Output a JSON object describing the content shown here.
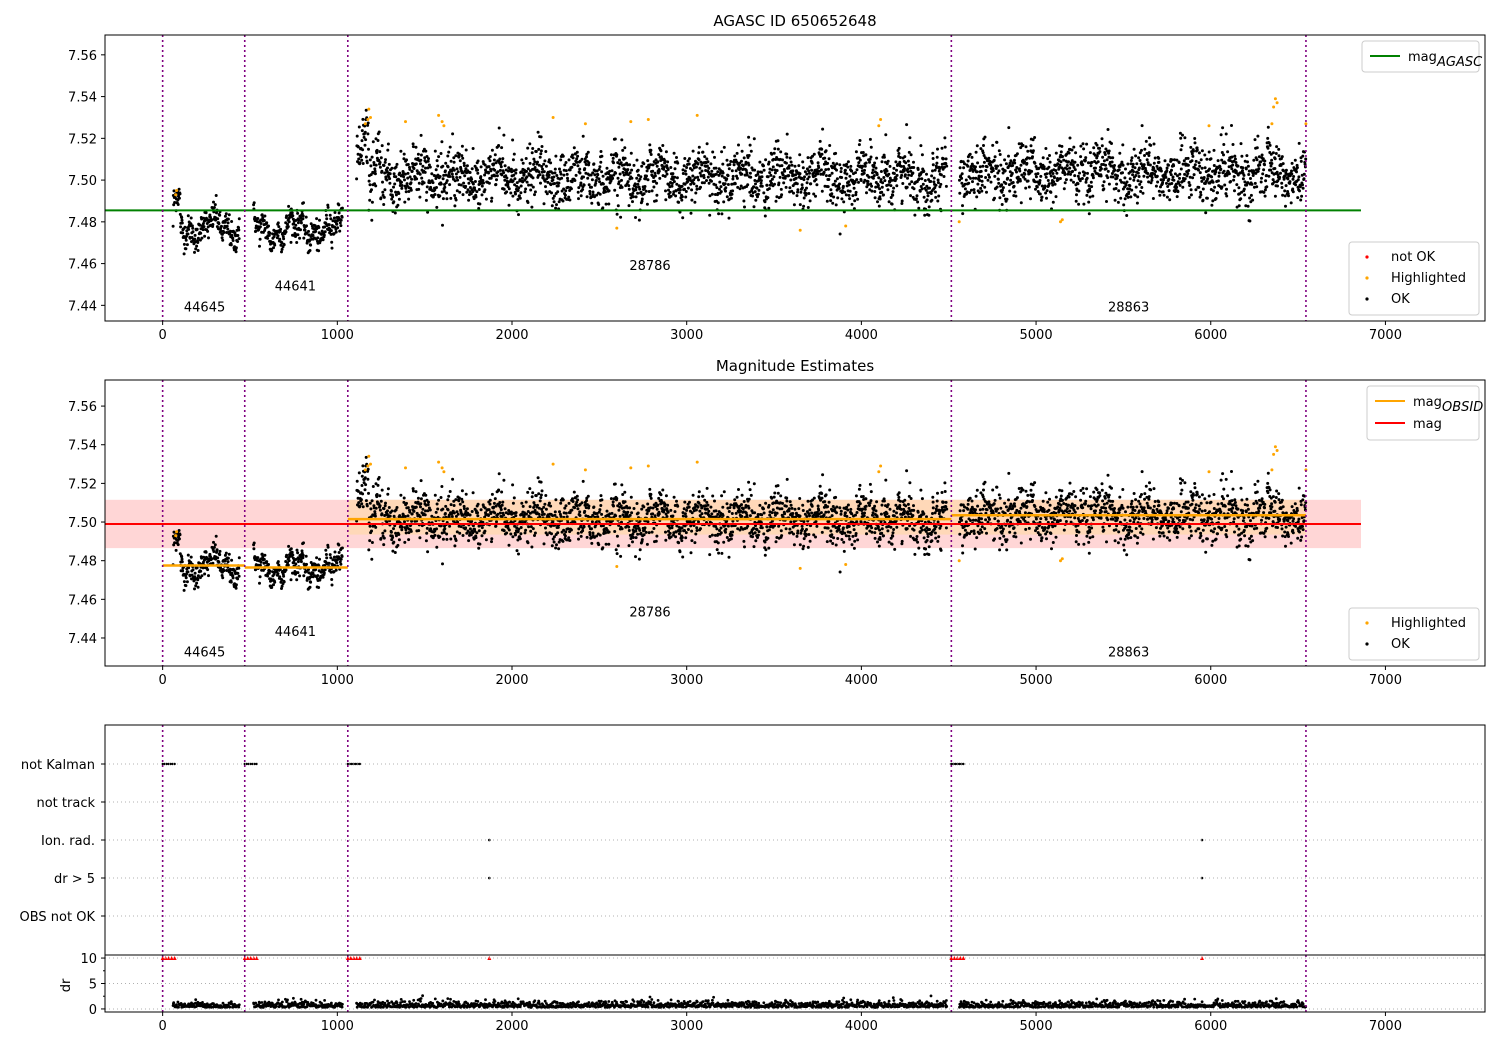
{
  "colors": {
    "agasc_line": "#008000",
    "obsid_line": "#ffa500",
    "mag_line": "#ff0000",
    "mag_band": "#ffd6d6",
    "obsid_band": "#ffd8b0",
    "divider": "#800080",
    "ok": "#000000",
    "highlighted": "#ffa500",
    "not_ok": "#ff0000"
  },
  "chart_data": [
    {
      "id": "agasc",
      "type": "scatter",
      "title": "AGASC ID 650652648",
      "xlabel": "",
      "ylabel": "",
      "xlim": [
        -330,
        7570
      ],
      "ylim": [
        7.4325,
        7.5695
      ],
      "xticks": [
        0,
        1000,
        2000,
        3000,
        4000,
        5000,
        6000,
        7000
      ],
      "yticks": [
        7.44,
        7.46,
        7.48,
        7.5,
        7.52,
        7.54,
        7.56
      ],
      "ytick_labels": [
        "7.44",
        "7.46",
        "7.48",
        "7.50",
        "7.52",
        "7.54",
        "7.56"
      ],
      "grid": false,
      "mag_agasc": 7.4855,
      "mag_agasc_x": [
        -330,
        6860
      ],
      "obsid_boundaries": [
        0,
        470,
        1060,
        4515,
        6545
      ],
      "obsid_labels": [
        {
          "text": "44645",
          "x": 240,
          "y": 7.437
        },
        {
          "text": "44641",
          "x": 760,
          "y": 7.447
        },
        {
          "text": "28786",
          "x": 2790,
          "y": 7.457
        },
        {
          "text": "28863",
          "x": 5530,
          "y": 7.437
        }
      ],
      "legend_lines": [
        {
          "label_main": "mag",
          "label_sub": "AGASC",
          "color": "#008000"
        }
      ],
      "legend_line_position": "upper right",
      "legend_points": [
        {
          "label": "not OK",
          "color": "#ff0000"
        },
        {
          "label": "Highlighted",
          "color": "#ffa500"
        },
        {
          "label": "OK",
          "color": "#000000"
        }
      ],
      "legend_points_position": "lower right"
    },
    {
      "id": "estimates",
      "type": "scatter",
      "title": "Magnitude Estimates",
      "xlabel": "",
      "ylabel": "",
      "xlim": [
        -330,
        7570
      ],
      "ylim": [
        7.4255,
        7.5735
      ],
      "xticks": [
        0,
        1000,
        2000,
        3000,
        4000,
        5000,
        6000,
        7000
      ],
      "yticks": [
        7.44,
        7.46,
        7.48,
        7.5,
        7.52,
        7.54,
        7.56
      ],
      "ytick_labels": [
        "7.44",
        "7.46",
        "7.48",
        "7.50",
        "7.52",
        "7.54",
        "7.56"
      ],
      "grid": false,
      "mag": 7.499,
      "mag_band": [
        7.4865,
        7.5115
      ],
      "mag_x": [
        -330,
        6860
      ],
      "obsid_mags": [
        {
          "x": [
            0,
            470
          ],
          "mag": 7.4775
        },
        {
          "x": [
            470,
            1060
          ],
          "mag": 7.4765
        },
        {
          "x": [
            1060,
            4515
          ],
          "mag": 7.5015
        },
        {
          "x": [
            4515,
            6545
          ],
          "mag": 7.5035
        }
      ],
      "obsid_band": [
        7.4935,
        7.5115
      ],
      "obsid_band_x": [
        1060,
        6545
      ],
      "obsid_boundaries": [
        0,
        470,
        1060,
        4515,
        6545
      ],
      "obsid_labels": [
        {
          "text": "44645",
          "x": 240,
          "y": 7.4305
        },
        {
          "text": "44641",
          "x": 760,
          "y": 7.441
        },
        {
          "text": "28786",
          "x": 2790,
          "y": 7.451
        },
        {
          "text": "28863",
          "x": 5530,
          "y": 7.4305
        }
      ],
      "legend_lines": [
        {
          "label_main": "mag",
          "label_sub": "OBSID",
          "color": "#ffa500"
        },
        {
          "label_main": "mag",
          "label_sub": "",
          "color": "#ff0000"
        }
      ],
      "legend_line_position": "upper right",
      "legend_points": [
        {
          "label": "Highlighted",
          "color": "#ffa500"
        },
        {
          "label": "OK",
          "color": "#000000"
        }
      ],
      "legend_points_position": "lower right"
    },
    {
      "id": "flags",
      "type": "scatter",
      "title": "",
      "xlabel": "",
      "ylabel": "",
      "xlim": [
        -330,
        7570
      ],
      "categories": [
        "not Kalman",
        "not track",
        "Ion. rad.",
        "dr > 5",
        "OBS not OK"
      ],
      "obsid_boundaries": [
        0,
        470,
        1060,
        4515,
        6545
      ],
      "flag_spans": {
        "not Kalman": [
          [
            0,
            70
          ],
          [
            470,
            540
          ],
          [
            1060,
            1130
          ],
          [
            4515,
            4585
          ]
        ],
        "not track": [],
        "Ion. rad.": [
          [
            1870,
            1870
          ],
          [
            5950,
            5950
          ]
        ],
        "dr > 5": [
          [
            1870,
            1870
          ],
          [
            5950,
            5950
          ]
        ],
        "OBS not OK": []
      },
      "grid": true
    },
    {
      "id": "dr",
      "type": "scatter",
      "title": "",
      "xlabel": "",
      "ylabel": "dr",
      "xlim": [
        -330,
        7570
      ],
      "ylim": [
        -0.6,
        10.6
      ],
      "yticks": [
        0,
        5,
        10
      ],
      "ytick_labels": [
        "0",
        "5",
        "10"
      ],
      "xticks": [
        0,
        1000,
        2000,
        3000,
        4000,
        5000,
        6000,
        7000
      ],
      "obsid_boundaries": [
        0,
        470,
        1060,
        4515,
        6545
      ],
      "clipped_at": 10,
      "clipped_spans": [
        [
          0,
          70
        ],
        [
          470,
          540
        ],
        [
          1060,
          1130
        ],
        [
          4515,
          4585
        ],
        [
          1870,
          1870
        ],
        [
          5950,
          5950
        ]
      ]
    }
  ]
}
